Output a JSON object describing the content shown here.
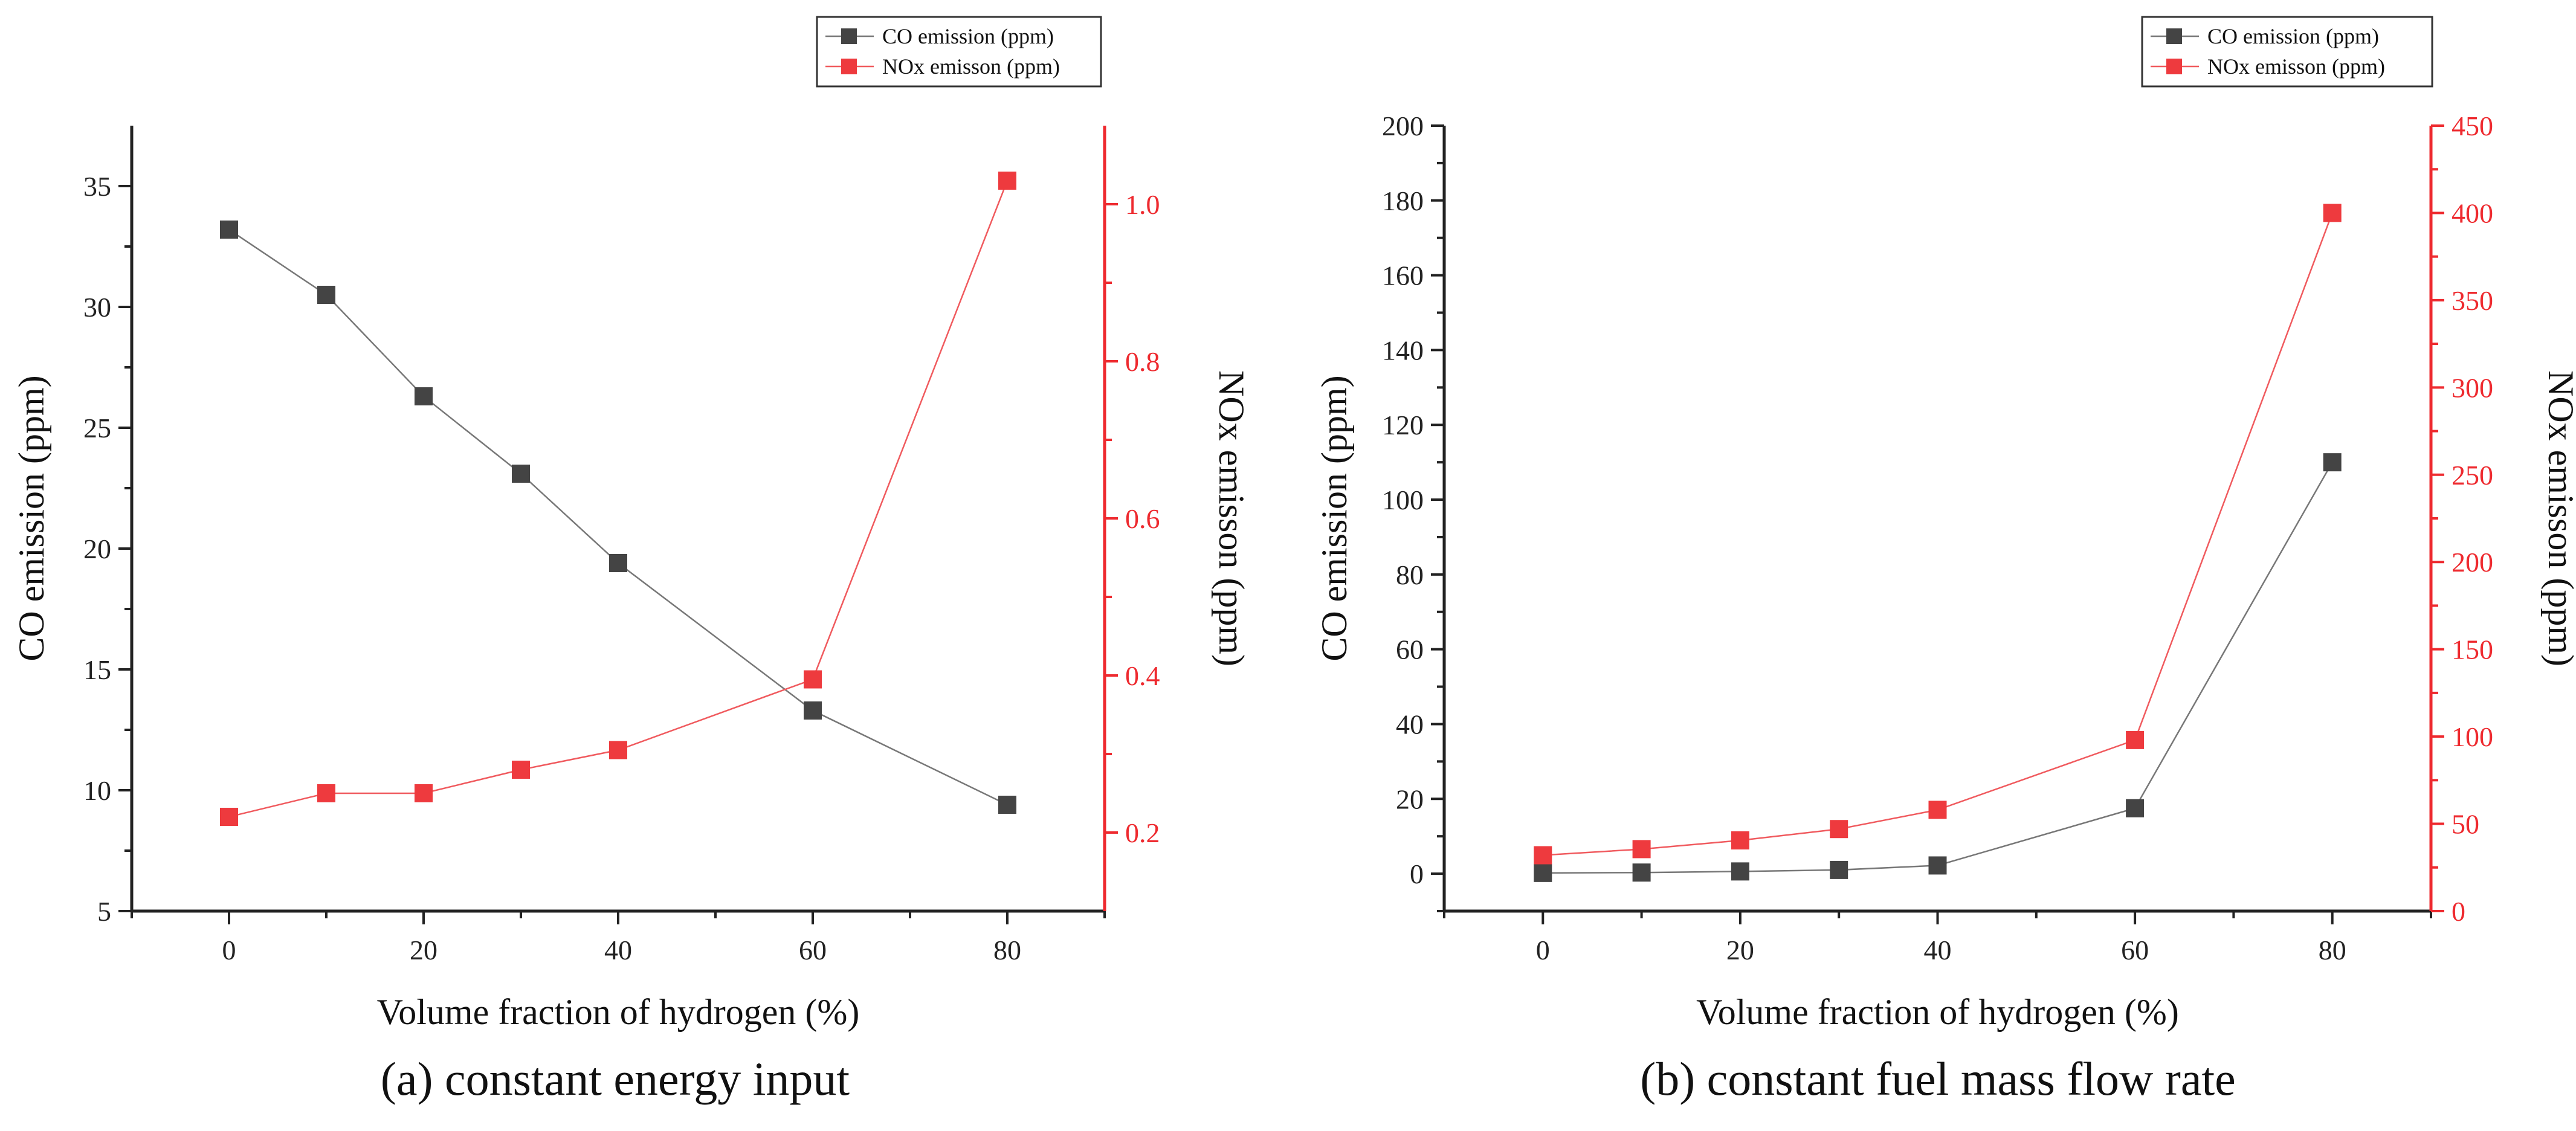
{
  "colors": {
    "co": "#444444",
    "nox": "#ee3a3e",
    "axis": "#222222"
  },
  "chart_data": [
    {
      "id": "a",
      "type": "line",
      "caption": "(a) constant energy input",
      "xlabel": "Volume fraction of hydrogen (%)",
      "ylabel_left": "CO emission (ppm)",
      "ylabel_right": "NOx emisson (ppm)",
      "xlim": [
        -10,
        90
      ],
      "xticks": [
        0,
        20,
        40,
        60,
        80
      ],
      "ylim_left": [
        5,
        37.5
      ],
      "yticks_left": [
        5,
        10,
        15,
        20,
        25,
        30,
        35
      ],
      "ylim_right": [
        0.1,
        1.1
      ],
      "yticks_right": [
        0.2,
        0.4,
        0.6,
        0.8,
        1.0
      ],
      "yticklabels_right": [
        "0.2",
        "0.4",
        "0.6",
        "0.8",
        "1.0"
      ],
      "legend": [
        "CO emission (ppm)",
        "NOx emisson (ppm)"
      ],
      "legend_position": "top-right",
      "x": [
        0,
        10,
        20,
        30,
        40,
        60,
        80
      ],
      "series": [
        {
          "name": "CO emission (ppm)",
          "axis": "left",
          "values": [
            33.2,
            30.5,
            26.3,
            23.1,
            19.4,
            13.3,
            9.4
          ]
        },
        {
          "name": "NOx emisson (ppm)",
          "axis": "right",
          "values": [
            0.22,
            0.25,
            0.25,
            0.28,
            0.305,
            0.395,
            1.03
          ]
        }
      ]
    },
    {
      "id": "b",
      "type": "line",
      "caption": "(b) constant fuel mass flow rate",
      "xlabel": "Volume fraction of hydrogen (%)",
      "ylabel_left": "CO emission (ppm)",
      "ylabel_right": "NOx emisson (ppm)",
      "xlim": [
        -10,
        90
      ],
      "xticks": [
        0,
        20,
        40,
        60,
        80
      ],
      "ylim_left": [
        -10,
        200
      ],
      "yticks_left": [
        0,
        20,
        40,
        60,
        80,
        100,
        120,
        140,
        160,
        180,
        200
      ],
      "ylim_right": [
        0,
        450
      ],
      "yticks_right": [
        0,
        50,
        100,
        150,
        200,
        250,
        300,
        350,
        400,
        450
      ],
      "yticklabels_right": [
        "0",
        "50",
        "100",
        "150",
        "200",
        "250",
        "300",
        "350",
        "400",
        "450"
      ],
      "legend": [
        "CO emission (ppm)",
        "NOx emisson (ppm)"
      ],
      "legend_position": "top-right",
      "x": [
        0,
        10,
        20,
        30,
        40,
        60,
        80
      ],
      "series": [
        {
          "name": "CO emission (ppm)",
          "axis": "left",
          "values": [
            0.2,
            0.3,
            0.6,
            1.0,
            2.2,
            17.5,
            110
          ]
        },
        {
          "name": "NOx emisson (ppm)",
          "axis": "right",
          "values": [
            32,
            35.5,
            40.5,
            47,
            58,
            98,
            400
          ]
        }
      ]
    }
  ]
}
